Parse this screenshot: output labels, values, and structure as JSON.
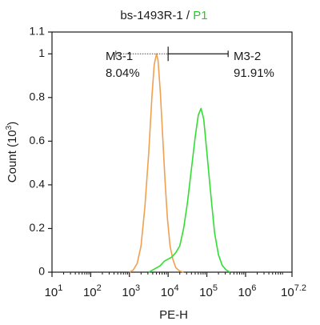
{
  "chart_data": {
    "type": "line",
    "title": {
      "sample": "bs-1493R-1",
      "separator": " / ",
      "gate": "P1",
      "gate_color": "#22cc22"
    },
    "xlabel": "PE-H",
    "ylabel": "Count",
    "ylabel_unit": "(10",
    "ylabel_exp": "3",
    "ylabel_unit_close": ")",
    "xscale": "log",
    "xlim_log10": [
      1,
      7.2
    ],
    "ylim": [
      0,
      1.1
    ],
    "x_ticks": [
      {
        "base": "10",
        "exp": "1",
        "log": 1
      },
      {
        "base": "10",
        "exp": "2",
        "log": 2
      },
      {
        "base": "10",
        "exp": "3",
        "log": 3
      },
      {
        "base": "10",
        "exp": "4",
        "log": 4
      },
      {
        "base": "10",
        "exp": "5",
        "log": 5
      },
      {
        "base": "10",
        "exp": "6",
        "log": 6
      },
      {
        "base": "10",
        "exp": "7.2",
        "log": 7.2
      }
    ],
    "y_ticks": [
      {
        "label": "0",
        "value": 0
      },
      {
        "label": "0.2",
        "value": 0.2
      },
      {
        "label": "0.4",
        "value": 0.4
      },
      {
        "label": "0.6",
        "value": 0.6
      },
      {
        "label": "0.8",
        "value": 0.8
      },
      {
        "label": "1",
        "value": 1.0
      },
      {
        "label": "1.1",
        "value": 1.1
      }
    ],
    "gates": {
      "y_value": 1.0,
      "divider_log": 4.0,
      "left_end_log": 2.65,
      "right_end_log": 5.55,
      "left": {
        "name": "M3-1",
        "percent": "8.04%"
      },
      "right": {
        "name": "M3-2",
        "percent": "91.91%"
      }
    },
    "series": [
      {
        "color": "#f0a050",
        "points": [
          [
            3.0,
            0.0
          ],
          [
            3.1,
            0.01
          ],
          [
            3.2,
            0.04
          ],
          [
            3.3,
            0.12
          ],
          [
            3.4,
            0.3
          ],
          [
            3.5,
            0.55
          ],
          [
            3.58,
            0.8
          ],
          [
            3.64,
            0.95
          ],
          [
            3.7,
            1.0
          ],
          [
            3.74,
            0.97
          ],
          [
            3.8,
            0.82
          ],
          [
            3.86,
            0.62
          ],
          [
            3.92,
            0.42
          ],
          [
            3.98,
            0.25
          ],
          [
            4.05,
            0.12
          ],
          [
            4.12,
            0.06
          ],
          [
            4.2,
            0.02
          ],
          [
            4.3,
            0.005
          ],
          [
            4.4,
            0.0
          ]
        ]
      },
      {
        "color": "#33dd33",
        "points": [
          [
            3.5,
            0.0
          ],
          [
            3.6,
            0.01
          ],
          [
            3.7,
            0.02
          ],
          [
            3.8,
            0.03
          ],
          [
            3.9,
            0.05
          ],
          [
            4.0,
            0.06
          ],
          [
            4.1,
            0.07
          ],
          [
            4.2,
            0.09
          ],
          [
            4.3,
            0.12
          ],
          [
            4.4,
            0.2
          ],
          [
            4.5,
            0.32
          ],
          [
            4.6,
            0.47
          ],
          [
            4.7,
            0.62
          ],
          [
            4.78,
            0.72
          ],
          [
            4.85,
            0.75
          ],
          [
            4.92,
            0.7
          ],
          [
            5.0,
            0.55
          ],
          [
            5.1,
            0.36
          ],
          [
            5.2,
            0.18
          ],
          [
            5.3,
            0.08
          ],
          [
            5.4,
            0.03
          ],
          [
            5.5,
            0.01
          ],
          [
            5.6,
            0.0
          ]
        ]
      }
    ]
  }
}
